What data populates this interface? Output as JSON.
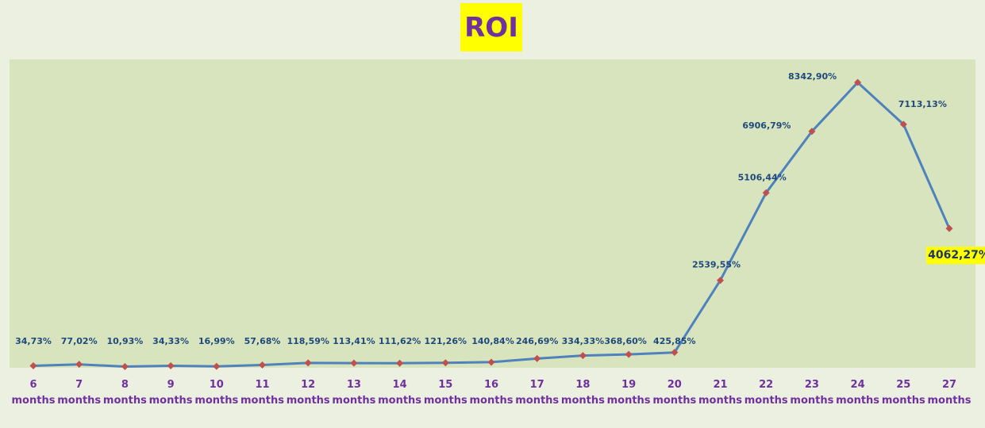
{
  "chart_data": {
    "type": "line",
    "title": "ROI",
    "categories": [
      [
        "6",
        "months"
      ],
      [
        "7",
        "months"
      ],
      [
        "8",
        "months"
      ],
      [
        "9",
        "months"
      ],
      [
        "10",
        "months"
      ],
      [
        "11",
        "months"
      ],
      [
        "12",
        "months"
      ],
      [
        "13",
        "months"
      ],
      [
        "14",
        "months"
      ],
      [
        "15",
        "months"
      ],
      [
        "16",
        "months"
      ],
      [
        "17",
        "months"
      ],
      [
        "18",
        "months"
      ],
      [
        "19",
        "months"
      ],
      [
        "20",
        "months"
      ],
      [
        "21",
        "months"
      ],
      [
        "22",
        "months"
      ],
      [
        "23",
        "months"
      ],
      [
        "24",
        "months"
      ],
      [
        "25",
        "months"
      ],
      [
        "27",
        "months"
      ]
    ],
    "values": [
      34.73,
      77.02,
      10.93,
      34.33,
      16.99,
      57.68,
      118.59,
      113.41,
      111.62,
      121.26,
      140.84,
      246.69,
      334.33,
      368.6,
      425.85,
      2539.55,
      5106.44,
      6906.79,
      8342.9,
      7113.13,
      4062.27
    ],
    "data_labels": [
      "34,73%",
      "77,02%",
      "10,93%",
      "34,33%",
      "16,99%",
      "57,68%",
      "118,59%",
      "113,41%",
      "111,62%",
      "121,26%",
      "140,84%",
      "246,69%",
      "334,33%",
      "368,60%",
      "425,85%",
      "2539,55%",
      "5106,44%",
      "6906,79%",
      "8342,90%",
      "7113,13%",
      "4062,27%"
    ],
    "highlighted_label_index": 20,
    "xlabel": "",
    "ylabel": "",
    "ylim": [
      0,
      9000
    ],
    "grid": false,
    "legend": "none",
    "colors": {
      "line": "#4f81bd",
      "marker": "#c0504d",
      "plot_background": "#d7e4bd",
      "page_background": "#ecf0e0",
      "data_label": "#1f497d",
      "tick_label": "#7030a0",
      "title": "#7030a0",
      "highlight": "#ffff00"
    }
  }
}
